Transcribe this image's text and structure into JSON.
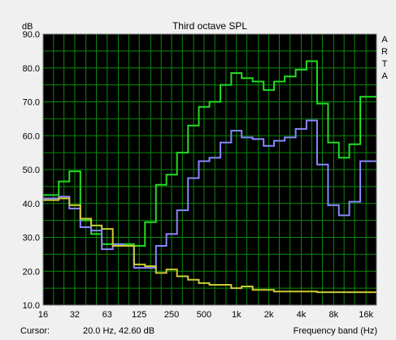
{
  "chart_data": {
    "type": "line",
    "step": true,
    "title": "Third octave SPL",
    "ylabel": "dB",
    "xlabel": "Frequency band (Hz)",
    "side_label": [
      "A",
      "R",
      "T",
      "A"
    ],
    "ylim": [
      10,
      90
    ],
    "yticks": [
      10,
      20,
      30,
      40,
      50,
      60,
      70,
      80,
      90
    ],
    "ytick_labels": [
      "10.0",
      "20.0",
      "30.0",
      "40.0",
      "50.0",
      "60.0",
      "70.0",
      "80.0",
      "90.0"
    ],
    "xlim": [
      16,
      20000
    ],
    "xscale": "log",
    "xtick_values": [
      16,
      31.5,
      63,
      125,
      250,
      500,
      1000,
      2000,
      4000,
      8000,
      16000
    ],
    "xtick_labels": [
      "16",
      "32",
      "63",
      "125",
      "250",
      "500",
      "1k",
      "2k",
      "4k",
      "8k",
      "16k"
    ],
    "grid": true,
    "bands": [
      16,
      20,
      25,
      31.5,
      40,
      50,
      63,
      80,
      100,
      125,
      160,
      200,
      250,
      315,
      400,
      500,
      630,
      800,
      1000,
      1250,
      1600,
      2000,
      2500,
      3150,
      4000,
      5000,
      6300,
      8000,
      10000,
      12500,
      16000
    ],
    "series": [
      {
        "color": "#22dd22",
        "values": [
          42.5,
          42.5,
          46.5,
          49.5,
          35.0,
          31.0,
          28.0,
          28.0,
          28.0,
          27.5,
          34.5,
          45.5,
          48.5,
          55.0,
          63.0,
          68.5,
          70.0,
          75.0,
          78.5,
          77.0,
          76.0,
          73.5,
          76.0,
          77.5,
          79.5,
          82.0,
          69.5,
          58.0,
          53.5,
          57.5,
          71.5
        ]
      },
      {
        "color": "#8888ff",
        "values": [
          41.5,
          41.5,
          42.0,
          38.5,
          33.0,
          32.0,
          26.5,
          28.0,
          27.5,
          21.0,
          21.0,
          27.5,
          31.0,
          38.0,
          47.5,
          52.5,
          53.5,
          58.0,
          61.5,
          59.5,
          59.0,
          57.0,
          58.5,
          59.5,
          62.0,
          64.5,
          51.5,
          39.5,
          36.5,
          40.5,
          52.5
        ]
      },
      {
        "color": "#cccc33",
        "values": [
          41.0,
          41.0,
          41.5,
          39.5,
          35.5,
          33.5,
          32.5,
          27.5,
          27.5,
          22.0,
          21.5,
          19.5,
          20.5,
          18.5,
          17.5,
          16.5,
          16.0,
          16.0,
          15.0,
          15.5,
          14.5,
          14.5,
          14.0,
          14.0,
          14.0,
          14.0,
          13.8,
          13.8,
          13.8,
          13.8,
          13.8
        ]
      }
    ]
  },
  "status": {
    "cursor_label": "Cursor:",
    "cursor_value": "20.0 Hz, 42.60 dB"
  }
}
